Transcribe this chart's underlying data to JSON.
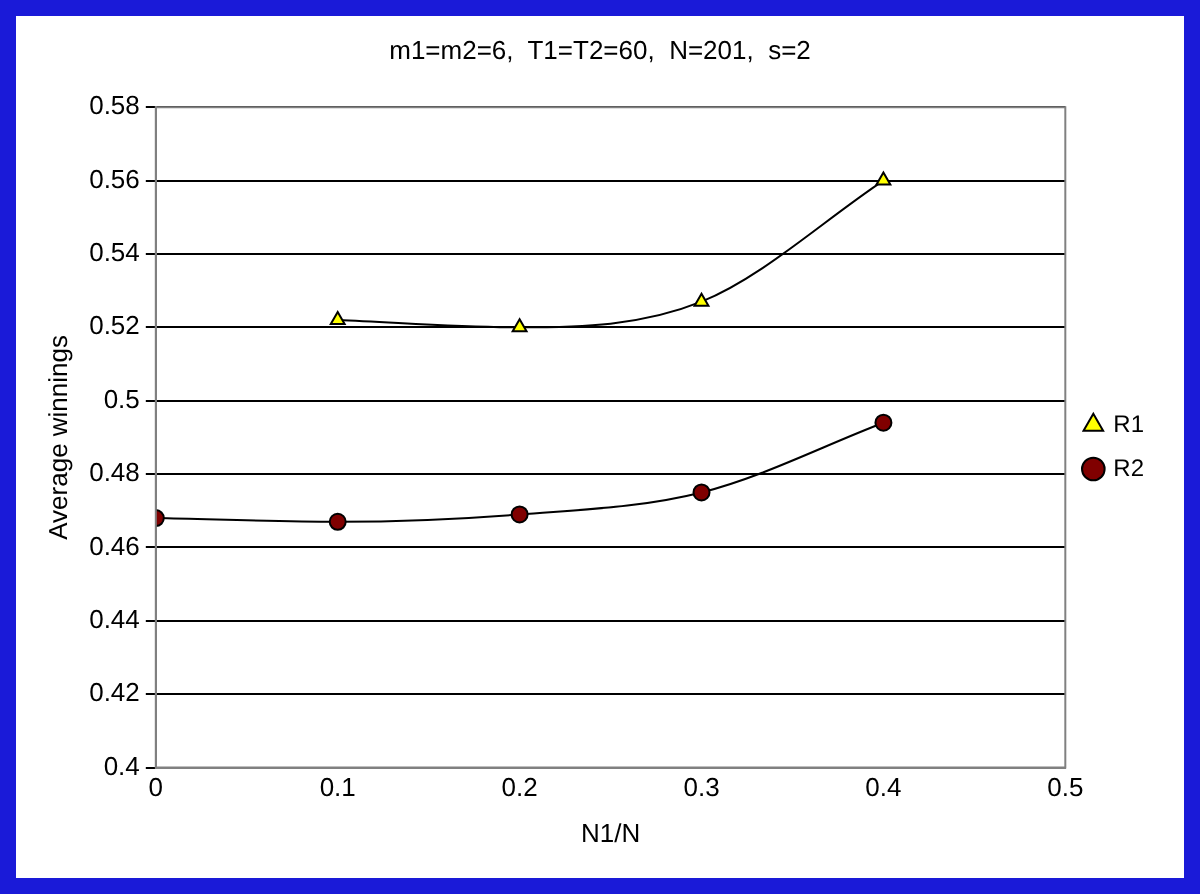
{
  "chart_data": {
    "type": "line",
    "title": "m1=m2=6,  T1=T2=60,  N=201,  s=2",
    "xlabel": "N1/N",
    "ylabel": "Average winnings",
    "xlim": [
      0,
      0.5
    ],
    "xticks": [
      0,
      0.1,
      0.2,
      0.3,
      0.4,
      0.5
    ],
    "ylim": [
      0.4,
      0.58
    ],
    "yticks": [
      0.4,
      0.42,
      0.44,
      0.46,
      0.48,
      0.5,
      0.52,
      0.54,
      0.56,
      0.58
    ],
    "grid": "y",
    "legend": "right",
    "line_style": "solid",
    "series": [
      {
        "name": "R1",
        "color": "#ffff00",
        "marker": "triangle",
        "x": [
          0.1,
          0.2,
          0.3,
          0.4
        ],
        "values": [
          0.522,
          0.52,
          0.527,
          0.56
        ]
      },
      {
        "name": "R2",
        "color": "#800000",
        "marker": "circle",
        "x": [
          0,
          0.1,
          0.2,
          0.3,
          0.4
        ],
        "values": [
          0.468,
          0.467,
          0.469,
          0.475,
          0.494
        ]
      }
    ]
  }
}
